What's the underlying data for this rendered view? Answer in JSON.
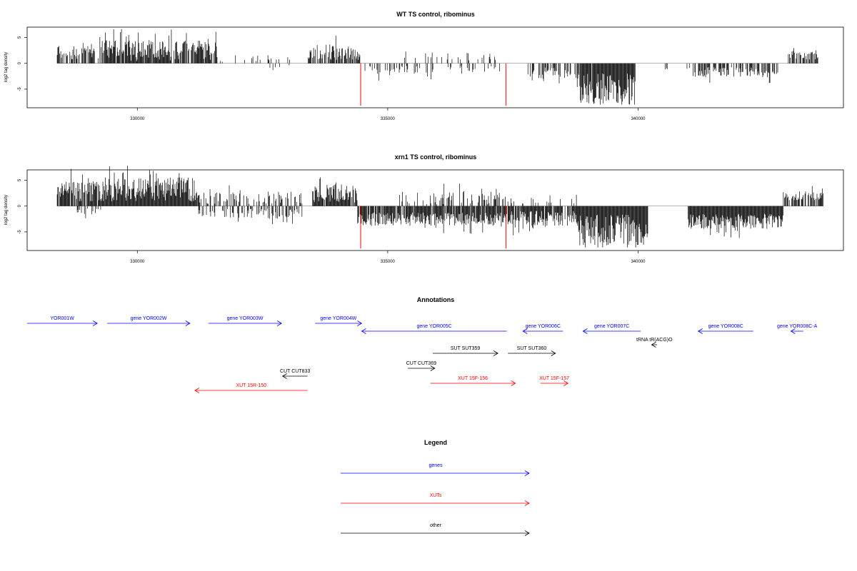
{
  "chart_data": [
    {
      "type": "bar",
      "title": "WT TS control, ribominus",
      "ylabel": "log2 tag density",
      "xlim": [
        327800,
        344100
      ],
      "ylim": [
        -8.6,
        7.0
      ],
      "x_ticks": [
        330000,
        335000,
        340000
      ],
      "y_ticks": [
        -5,
        0,
        5
      ],
      "profile": {
        "seed": 11,
        "scale": 1.0
      },
      "markers": [
        {
          "x": 334460,
          "value": -8.2,
          "color": "#ff0000"
        },
        {
          "x": 337360,
          "value": -8.2,
          "color": "#ff0000"
        }
      ],
      "segments": [
        {
          "start": 328400,
          "end": 329300,
          "sign": 1,
          "mean": 2.2,
          "spread": 1.7,
          "density": 0.55
        },
        {
          "start": 329300,
          "end": 331600,
          "sign": 1,
          "mean": 2.2,
          "spread": 2.0,
          "density": 0.9
        },
        {
          "start": 331600,
          "end": 333100,
          "sign": 1,
          "mean": 0.9,
          "spread": 0.7,
          "density": 0.18
        },
        {
          "start": 332600,
          "end": 333100,
          "sign": -1,
          "mean": 0.8,
          "spread": 0.5,
          "density": 0.1
        },
        {
          "start": 333400,
          "end": 334450,
          "sign": 1,
          "mean": 2.0,
          "spread": 1.5,
          "density": 0.65
        },
        {
          "start": 334450,
          "end": 336000,
          "sign": -1,
          "mean": 1.3,
          "spread": 0.9,
          "density": 0.28
        },
        {
          "start": 335300,
          "end": 337300,
          "sign": 1,
          "mean": 1.2,
          "spread": 1.0,
          "density": 0.1
        },
        {
          "start": 336000,
          "end": 337400,
          "sign": -1,
          "mean": 1.2,
          "spread": 0.8,
          "density": 0.12
        },
        {
          "start": 337800,
          "end": 338800,
          "sign": -1,
          "mean": 2.0,
          "spread": 1.4,
          "density": 0.5
        },
        {
          "start": 338800,
          "end": 339950,
          "sign": -1,
          "mean": 4.6,
          "spread": 3.0,
          "density": 0.98
        },
        {
          "start": 340400,
          "end": 341000,
          "sign": -1,
          "mean": 1.0,
          "spread": 0.5,
          "density": 0.08
        },
        {
          "start": 341000,
          "end": 342800,
          "sign": -1,
          "mean": 1.6,
          "spread": 1.0,
          "density": 0.6
        },
        {
          "start": 343000,
          "end": 343600,
          "sign": 1,
          "mean": 1.5,
          "spread": 1.0,
          "density": 0.6
        }
      ]
    },
    {
      "type": "bar",
      "title": "xrn1 TS control, ribominus",
      "ylabel": "log2 tag density",
      "xlim": [
        327800,
        344100
      ],
      "ylim": [
        -8.6,
        7.0
      ],
      "x_ticks": [
        330000,
        335000,
        340000
      ],
      "y_ticks": [
        -5,
        0,
        5
      ],
      "profile": {
        "seed": 23,
        "scale": 1.0
      },
      "markers": [
        {
          "x": 334460,
          "value": -8.2,
          "color": "#ff0000"
        },
        {
          "x": 337360,
          "value": -8.2,
          "color": "#ff0000"
        }
      ],
      "segments": [
        {
          "start": 328400,
          "end": 329300,
          "sign": 1,
          "mean": 2.6,
          "spread": 2.0,
          "density": 0.85
        },
        {
          "start": 328800,
          "end": 329300,
          "sign": -1,
          "mean": 1.0,
          "spread": 0.6,
          "density": 0.2
        },
        {
          "start": 329300,
          "end": 331200,
          "sign": 1,
          "mean": 3.0,
          "spread": 2.3,
          "density": 1.0
        },
        {
          "start": 331200,
          "end": 333300,
          "sign": 1,
          "mean": 1.5,
          "spread": 1.2,
          "density": 0.45
        },
        {
          "start": 331200,
          "end": 333300,
          "sign": -1,
          "mean": 1.4,
          "spread": 1.0,
          "density": 0.45
        },
        {
          "start": 333500,
          "end": 334400,
          "sign": 1,
          "mean": 2.3,
          "spread": 1.8,
          "density": 0.95
        },
        {
          "start": 334400,
          "end": 337400,
          "sign": -1,
          "mean": 2.4,
          "spread": 1.3,
          "density": 0.9
        },
        {
          "start": 335200,
          "end": 337400,
          "sign": 1,
          "mean": 1.5,
          "spread": 1.3,
          "density": 0.35
        },
        {
          "start": 337400,
          "end": 338800,
          "sign": -1,
          "mean": 2.4,
          "spread": 1.6,
          "density": 0.85
        },
        {
          "start": 337400,
          "end": 338800,
          "sign": 1,
          "mean": 1.0,
          "spread": 0.6,
          "density": 0.15
        },
        {
          "start": 338800,
          "end": 340200,
          "sign": -1,
          "mean": 4.3,
          "spread": 3.0,
          "density": 1.0
        },
        {
          "start": 341000,
          "end": 342900,
          "sign": -1,
          "mean": 2.8,
          "spread": 1.5,
          "density": 1.0
        },
        {
          "start": 342900,
          "end": 343700,
          "sign": 1,
          "mean": 1.9,
          "spread": 0.9,
          "density": 0.7
        }
      ]
    }
  ],
  "annotations": {
    "title": "Annotations",
    "items": [
      {
        "label": "YOR001W",
        "start": 327800,
        "end": 329200,
        "dir": "right",
        "color": "#0000ff",
        "row": 0
      },
      {
        "label": "gene YOR002W",
        "start": 329400,
        "end": 331050,
        "dir": "right",
        "color": "#0000ff",
        "row": 0
      },
      {
        "label": "gene YOR003W",
        "start": 331420,
        "end": 332880,
        "dir": "right",
        "color": "#0000ff",
        "row": 0
      },
      {
        "label": "gene YOR004W",
        "start": 333550,
        "end": 334480,
        "dir": "right",
        "color": "#0000ff",
        "row": 0
      },
      {
        "label": "gene YOR005C",
        "start": 334480,
        "end": 337380,
        "dir": "left",
        "color": "#0000ff",
        "row": 1
      },
      {
        "label": "gene YOR006C",
        "start": 337700,
        "end": 338500,
        "dir": "left",
        "color": "#0000ff",
        "row": 1
      },
      {
        "label": "gene YOR007C",
        "start": 338900,
        "end": 340050,
        "dir": "left",
        "color": "#0000ff",
        "row": 1
      },
      {
        "label": "gene YOR008C",
        "start": 341200,
        "end": 342300,
        "dir": "left",
        "color": "#0000ff",
        "row": 1
      },
      {
        "label": "gene YOR008C-A",
        "start": 343050,
        "end": 343300,
        "dir": "left",
        "color": "#0000ff",
        "row": 1
      },
      {
        "label": "tRNA tR(ACG)O",
        "start": 340270,
        "end": 340380,
        "dir": "left",
        "color": "#000000",
        "row": 2
      },
      {
        "label": "SUT SUT359",
        "start": 335900,
        "end": 337200,
        "dir": "right",
        "color": "#000000",
        "row": 3
      },
      {
        "label": "SUT SUT360",
        "start": 337400,
        "end": 338350,
        "dir": "right",
        "color": "#000000",
        "row": 3
      },
      {
        "label": "CUT CUT369",
        "start": 335400,
        "end": 335940,
        "dir": "right",
        "color": "#000000",
        "row": 4
      },
      {
        "label": "CUT CUT833",
        "start": 332900,
        "end": 333400,
        "dir": "left",
        "color": "#000000",
        "row": 5
      },
      {
        "label": "XUT 15F-156",
        "start": 335850,
        "end": 337550,
        "dir": "right",
        "color": "#ff0000",
        "row": 6
      },
      {
        "label": "XUT 15F-157",
        "start": 338050,
        "end": 338600,
        "dir": "right",
        "color": "#ff0000",
        "row": 6
      },
      {
        "label": "XUT 15R-150",
        "start": 331150,
        "end": 333400,
        "dir": "left",
        "color": "#ff0000",
        "row": 7
      }
    ]
  },
  "legend": {
    "title": "Legend",
    "items": [
      {
        "label": "genes",
        "color": "#0000ff"
      },
      {
        "label": "XUTs",
        "color": "#ff0000"
      },
      {
        "label": "other",
        "color": "#000000"
      }
    ]
  }
}
